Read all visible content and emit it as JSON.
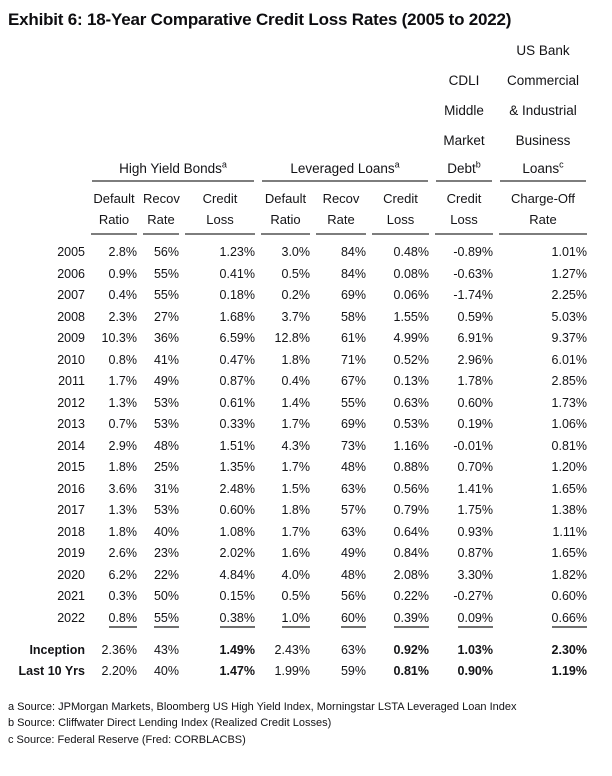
{
  "title": "Exhibit 6:  18-Year Comparative Credit Loss Rates (2005 to 2022)",
  "table": {
    "group_headers": {
      "cdli_stack": [
        "CDLI",
        "Middle",
        "Market"
      ],
      "usbank_stack": [
        "US Bank",
        "Commercial",
        "& Industrial",
        "Business"
      ],
      "hy": {
        "label": "High Yield Bonds",
        "sup": "a"
      },
      "ll": {
        "label": "Leveraged Loans",
        "sup": "a"
      },
      "cdli": {
        "label": "Debt",
        "sup": "b"
      },
      "usbank": {
        "label": "Loans",
        "sup": "c"
      }
    },
    "sub_headers": [
      {
        "line1": "Default",
        "line2": "Ratio"
      },
      {
        "line1": "Recov",
        "line2": "Rate"
      },
      {
        "line1": "Credit",
        "line2": "Loss"
      },
      {
        "line1": "Default",
        "line2": "Ratio"
      },
      {
        "line1": "Recov",
        "line2": "Rate"
      },
      {
        "line1": "Credit",
        "line2": "Loss"
      },
      {
        "line1": "Credit",
        "line2": "Loss"
      },
      {
        "line1": "Charge-Off",
        "line2": "Rate"
      }
    ],
    "rows": [
      {
        "label": "2005",
        "values": [
          "2.8%",
          "56%",
          "1.23%",
          "3.0%",
          "84%",
          "0.48%",
          "-0.89%",
          "1.01%"
        ]
      },
      {
        "label": "2006",
        "values": [
          "0.9%",
          "55%",
          "0.41%",
          "0.5%",
          "84%",
          "0.08%",
          "-0.63%",
          "1.27%"
        ]
      },
      {
        "label": "2007",
        "values": [
          "0.4%",
          "55%",
          "0.18%",
          "0.2%",
          "69%",
          "0.06%",
          "-1.74%",
          "2.25%"
        ]
      },
      {
        "label": "2008",
        "values": [
          "2.3%",
          "27%",
          "1.68%",
          "3.7%",
          "58%",
          "1.55%",
          "0.59%",
          "5.03%"
        ]
      },
      {
        "label": "2009",
        "values": [
          "10.3%",
          "36%",
          "6.59%",
          "12.8%",
          "61%",
          "4.99%",
          "6.91%",
          "9.37%"
        ]
      },
      {
        "label": "2010",
        "values": [
          "0.8%",
          "41%",
          "0.47%",
          "1.8%",
          "71%",
          "0.52%",
          "2.96%",
          "6.01%"
        ]
      },
      {
        "label": "2011",
        "values": [
          "1.7%",
          "49%",
          "0.87%",
          "0.4%",
          "67%",
          "0.13%",
          "1.78%",
          "2.85%"
        ]
      },
      {
        "label": "2012",
        "values": [
          "1.3%",
          "53%",
          "0.61%",
          "1.4%",
          "55%",
          "0.63%",
          "0.60%",
          "1.73%"
        ]
      },
      {
        "label": "2013",
        "values": [
          "0.7%",
          "53%",
          "0.33%",
          "1.7%",
          "69%",
          "0.53%",
          "0.19%",
          "1.06%"
        ]
      },
      {
        "label": "2014",
        "values": [
          "2.9%",
          "48%",
          "1.51%",
          "4.3%",
          "73%",
          "1.16%",
          "-0.01%",
          "0.81%"
        ]
      },
      {
        "label": "2015",
        "values": [
          "1.8%",
          "25%",
          "1.35%",
          "1.7%",
          "48%",
          "0.88%",
          "0.70%",
          "1.20%"
        ]
      },
      {
        "label": "2016",
        "values": [
          "3.6%",
          "31%",
          "2.48%",
          "1.5%",
          "63%",
          "0.56%",
          "1.41%",
          "1.65%"
        ]
      },
      {
        "label": "2017",
        "values": [
          "1.3%",
          "53%",
          "0.60%",
          "1.8%",
          "57%",
          "0.79%",
          "1.75%",
          "1.38%"
        ]
      },
      {
        "label": "2018",
        "values": [
          "1.8%",
          "40%",
          "1.08%",
          "1.7%",
          "63%",
          "0.64%",
          "0.93%",
          "1.11%"
        ]
      },
      {
        "label": "2019",
        "values": [
          "2.6%",
          "23%",
          "2.02%",
          "1.6%",
          "49%",
          "0.84%",
          "0.87%",
          "1.65%"
        ]
      },
      {
        "label": "2020",
        "values": [
          "6.2%",
          "22%",
          "4.84%",
          "4.0%",
          "48%",
          "2.08%",
          "3.30%",
          "1.82%"
        ]
      },
      {
        "label": "2021",
        "values": [
          "0.3%",
          "50%",
          "0.15%",
          "0.5%",
          "56%",
          "0.22%",
          "-0.27%",
          "0.60%"
        ]
      },
      {
        "label": "2022",
        "values": [
          "0.8%",
          "55%",
          "0.38%",
          "1.0%",
          "60%",
          "0.39%",
          "0.09%",
          "0.66%"
        ],
        "underline": true
      }
    ],
    "summary_rows": [
      {
        "label": "Inception",
        "values": [
          "2.36%",
          "43%",
          "1.49%",
          "2.43%",
          "63%",
          "0.92%",
          "1.03%",
          "2.30%"
        ]
      },
      {
        "label": "Last 10 Yrs",
        "values": [
          "2.20%",
          "40%",
          "1.47%",
          "1.99%",
          "59%",
          "0.81%",
          "0.90%",
          "1.19%"
        ]
      }
    ]
  },
  "footnotes": [
    "a Source: JPMorgan Markets, Bloomberg US High Yield Index, Morningstar LSTA Leveraged Loan Index",
    "b Source: Cliffwater Direct Lending Index (Realized Credit Losses)",
    "c Source: Federal Reserve (Fred: CORBLACBS)"
  ],
  "colors": {
    "text": "#131316",
    "rule_gray": "#7d7d7d",
    "background": "#ffffff"
  }
}
